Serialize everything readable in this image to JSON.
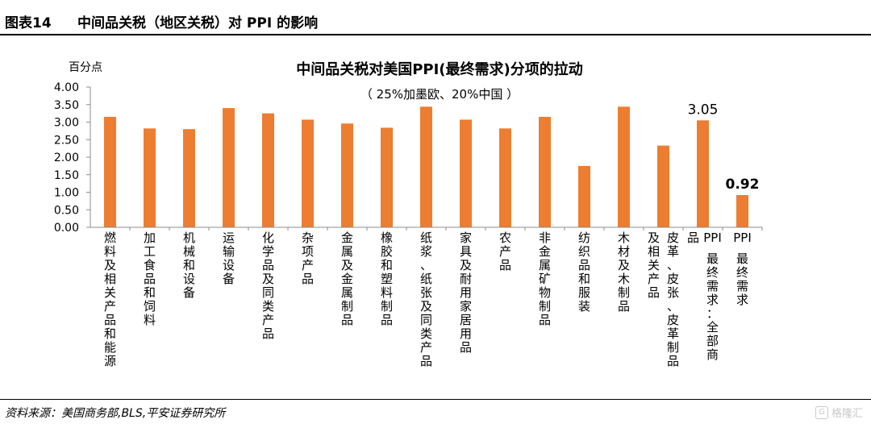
{
  "figure": {
    "number": "图表14",
    "title": "中间品关税（地区关税）对 PPI 的影响"
  },
  "footer": {
    "source": "资料来源：美国商务部,BLS,平安证券研究所",
    "watermark": "格隆汇"
  },
  "colors": {
    "bar": "#ED7D31",
    "axis": "#8c8c8c"
  },
  "chart_data": {
    "type": "bar",
    "title": "中间品关税对美国PPI(最终需求)分项的拉动",
    "subtitle": "（ 25%加墨欧、20%中国 ）",
    "ylabel": "百分点",
    "ylim": [
      0,
      4
    ],
    "yticks": [
      "0.00",
      "0.50",
      "1.00",
      "1.50",
      "2.00",
      "2.50",
      "3.00",
      "3.50",
      "4.00"
    ],
    "categories": [
      "燃料及相关产品和能源",
      "加工食品和饲料",
      "机械和设备",
      "运输设备",
      "化学品及同类产品",
      "杂项产品",
      "金属及金属制品",
      "橡胶和塑料制品",
      "纸浆、纸张及同类产品",
      "家具及耐用家居用品",
      "农产品",
      "非金属矿物制品",
      "纺织品和服装",
      "木材及木制品",
      "皮革、皮张、皮革制品及相关产品",
      "PPI最终需求：全部商品",
      "PPI最终需求"
    ],
    "category_lines": [
      [
        "燃料及相关产品和能源"
      ],
      [
        "加工食品和饲料"
      ],
      [
        "机械和设备"
      ],
      [
        "运输设备"
      ],
      [
        "化学品及同类产品"
      ],
      [
        "杂项产品"
      ],
      [
        "金属及金属制品"
      ],
      [
        "橡胶和塑料制品"
      ],
      [
        "纸浆、纸张及同类产品"
      ],
      [
        "家具及耐用家居用品"
      ],
      [
        "农产品"
      ],
      [
        "非金属矿物制品"
      ],
      [
        "纺织品和服装"
      ],
      [
        "木材及木制品"
      ],
      [
        "皮革、皮张、皮革制品",
        "及相关产品"
      ],
      [
        "PPI最终需求：全部商",
        "品"
      ],
      [
        "PPI最终需求"
      ]
    ],
    "values": [
      3.15,
      2.82,
      2.8,
      3.4,
      3.25,
      3.07,
      2.96,
      2.84,
      3.44,
      3.07,
      2.82,
      3.15,
      1.75,
      3.44,
      2.33,
      3.05,
      0.92
    ],
    "data_labels": [
      {
        "index": 15,
        "text": "3.05",
        "bold": false
      },
      {
        "index": 16,
        "text": "0.92",
        "bold": true
      }
    ],
    "legend": "none",
    "grid": false
  }
}
